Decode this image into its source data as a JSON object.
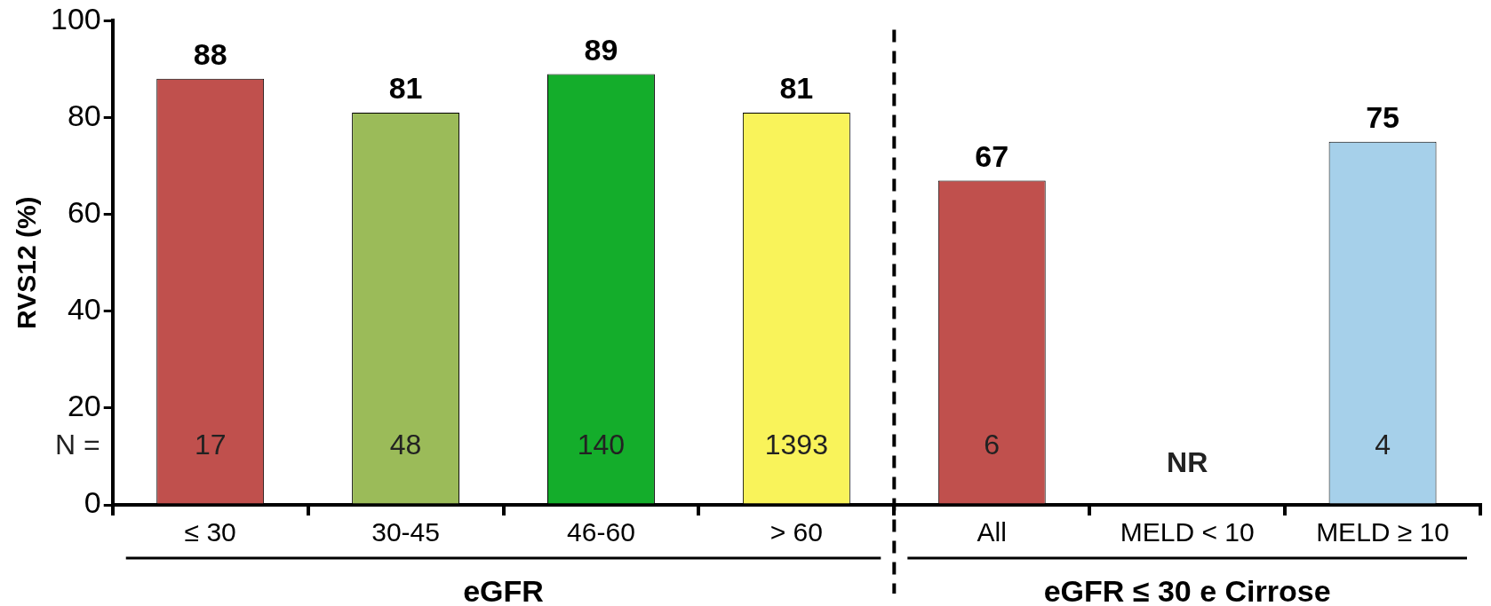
{
  "chart_data": {
    "type": "bar",
    "ylabel": "RVS12 (%)",
    "categories": [
      "≤ 30",
      "30-45",
      "46-60",
      "> 60",
      "All",
      "MELD < 10",
      "MELD ≥ 10"
    ],
    "values": [
      88,
      81,
      89,
      81,
      67,
      null,
      75
    ],
    "colors": [
      "#c0504d",
      "#9bbb59",
      "#14ad2b",
      "#f9f35a",
      "#c0504d",
      "#c0504d",
      "#a6d0ea"
    ],
    "ylim": [
      0,
      100
    ],
    "yticks": [
      0,
      20,
      40,
      60,
      80,
      100
    ],
    "grid": false,
    "legend": false,
    "data_labels": true,
    "annotations": [
      "N =",
      "17",
      "48",
      "140",
      "1393",
      "6",
      "NR",
      "4",
      "eGFR",
      "eGFR ≤ 30 e Cirrose"
    ]
  }
}
